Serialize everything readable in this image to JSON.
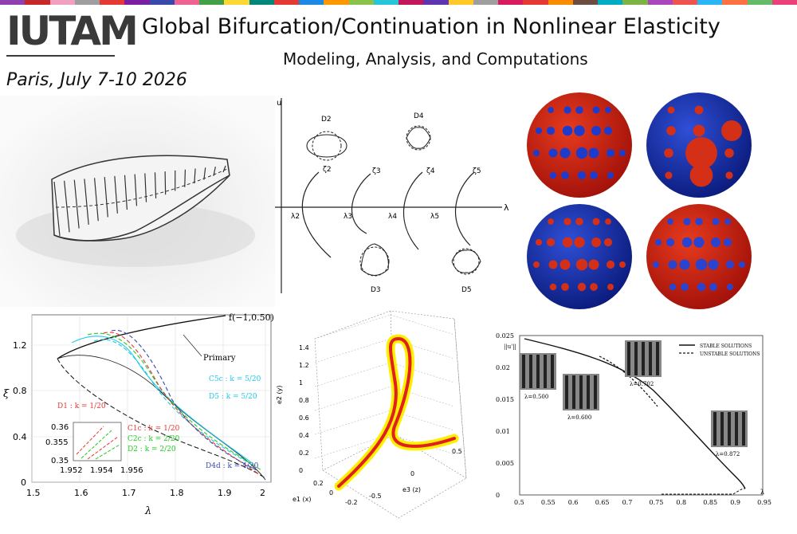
{
  "header": {
    "logo_text": "IUTAM",
    "title": "Global Bifurcation/Continuation in Nonlinear Elasticity",
    "subtitle": "Modeling, Analysis, and Computations",
    "dateline": "Paris, July 7-10 2026",
    "stripe_colors": [
      "#8e3fb0",
      "#c62828",
      "#f2a0c0",
      "#9e9e9e",
      "#e53935",
      "#7b1fa2",
      "#3949ab",
      "#f06292",
      "#43a047",
      "#fdd835",
      "#00897b",
      "#e53935",
      "#1e88e5",
      "#ff9800",
      "#8bc34a",
      "#26c6da",
      "#c2185b",
      "#5e35b1",
      "#ffca28",
      "#9e9e9e",
      "#d81b60",
      "#e53935",
      "#fb8c00",
      "#6d4c41",
      "#00acc1",
      "#7cb342",
      "#ab47bc",
      "#ef5350",
      "#29b6f6",
      "#ff7043",
      "#66bb6a",
      "#ec407a"
    ]
  },
  "diagram": {
    "u_label": "u",
    "lambda_label": "λ",
    "branch_labels": [
      "ζ2",
      "ζ3",
      "ζ4",
      "ζ5"
    ],
    "lambda_ticks": [
      "λ2",
      "λ3",
      "λ4",
      "λ5"
    ],
    "mode_labels": [
      "D2",
      "D4",
      "D3",
      "D5"
    ]
  },
  "plot_left": {
    "xlabel": "λ",
    "ylabel": "ξ",
    "curve_label": "f(−1,0.50)",
    "primary_label": "Primary",
    "x_ticks": [
      "1.5",
      "1.6",
      "1.7",
      "1.8",
      "1.9",
      "2"
    ],
    "y_ticks": [
      "0",
      "0.4",
      "0.8",
      "1.2"
    ],
    "labels": [
      {
        "text": "D1 : k = 1/20",
        "color": "#e53935"
      },
      {
        "text": "C1c : k = 1/20",
        "color": "#e53935"
      },
      {
        "text": "C2c : k = 2/20",
        "color": "#22cc22"
      },
      {
        "text": "D2 : k = 2/20",
        "color": "#22cc22"
      },
      {
        "text": "D4d : k = 4/20",
        "color": "#3949ab"
      },
      {
        "text": "C5c : k = 5/20",
        "color": "#1ec8e6"
      },
      {
        "text": "D5 : k = 5/20",
        "color": "#1ec8e6"
      }
    ],
    "inset_y_ticks": [
      "0.36",
      "0.355",
      "0.35"
    ],
    "inset_x_ticks": [
      "1.952",
      "1.954",
      "1.956"
    ]
  },
  "plot_3d": {
    "axis_x": "e3 (z)",
    "axis_y": "e2 (y)",
    "axis_depth": "e1 (x)",
    "z_ticks": [
      "0",
      "0.2",
      "0.4",
      "0.6",
      "0.8",
      "1",
      "1.2",
      "1.4"
    ],
    "x_ticks": [
      "-0.5",
      "0",
      "0.5"
    ],
    "depth_ticks": [
      "0.2",
      "0",
      "-0.2"
    ]
  },
  "plot_right": {
    "ylabel": "||u'||",
    "xlabel": "λ",
    "legend": [
      "STABLE SOLUTIONS",
      "UNSTABLE SOLUTIONS"
    ],
    "x_ticks": [
      "0.5",
      "0.55",
      "0.6",
      "0.65",
      "0.7",
      "0.75",
      "0.8",
      "0.85",
      "0.9",
      "0.95"
    ],
    "y_ticks": [
      "0",
      "0.005",
      "0.01",
      "0.015",
      "0.02",
      "0.025"
    ],
    "thumb_labels": [
      "λ=0.500",
      "λ=0.600",
      "λ=0.702",
      "λ=0.872"
    ]
  }
}
